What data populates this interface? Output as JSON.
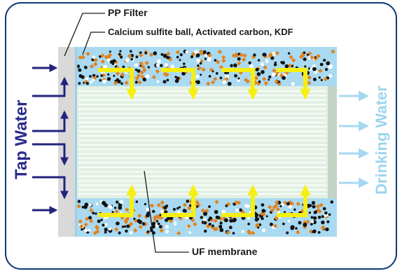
{
  "labels": {
    "pp_filter": "PP Filter",
    "media": "Calcium sulfite ball, Activated carbon, KDF",
    "uf_membrane": "UF membrane",
    "tap_water": "Tap Water",
    "drinking_water": "Drinking Water"
  },
  "colors": {
    "border": "#0f3a78",
    "tap_water_text": "#2a2b8c",
    "inlet_arrow": "#23237e",
    "drinking_water_text": "#9ed4ef",
    "outlet_arrow": "#a6d8f1",
    "outer_tube": "#a9daf2",
    "pp_filter": "#d9d9d9",
    "membrane": "#e3f0e4",
    "membrane_lines": "#ffffff",
    "end_cap": "#c3d3c4",
    "flow_arrow": "#f5ef12",
    "media_orange": "#e0831f",
    "media_black": "#111111",
    "media_white": "#ffffff"
  },
  "icons": {
    "inlet": "arrow-right-icon",
    "outlet": "arrow-right-icon",
    "flow": "arrow-down-icon"
  }
}
